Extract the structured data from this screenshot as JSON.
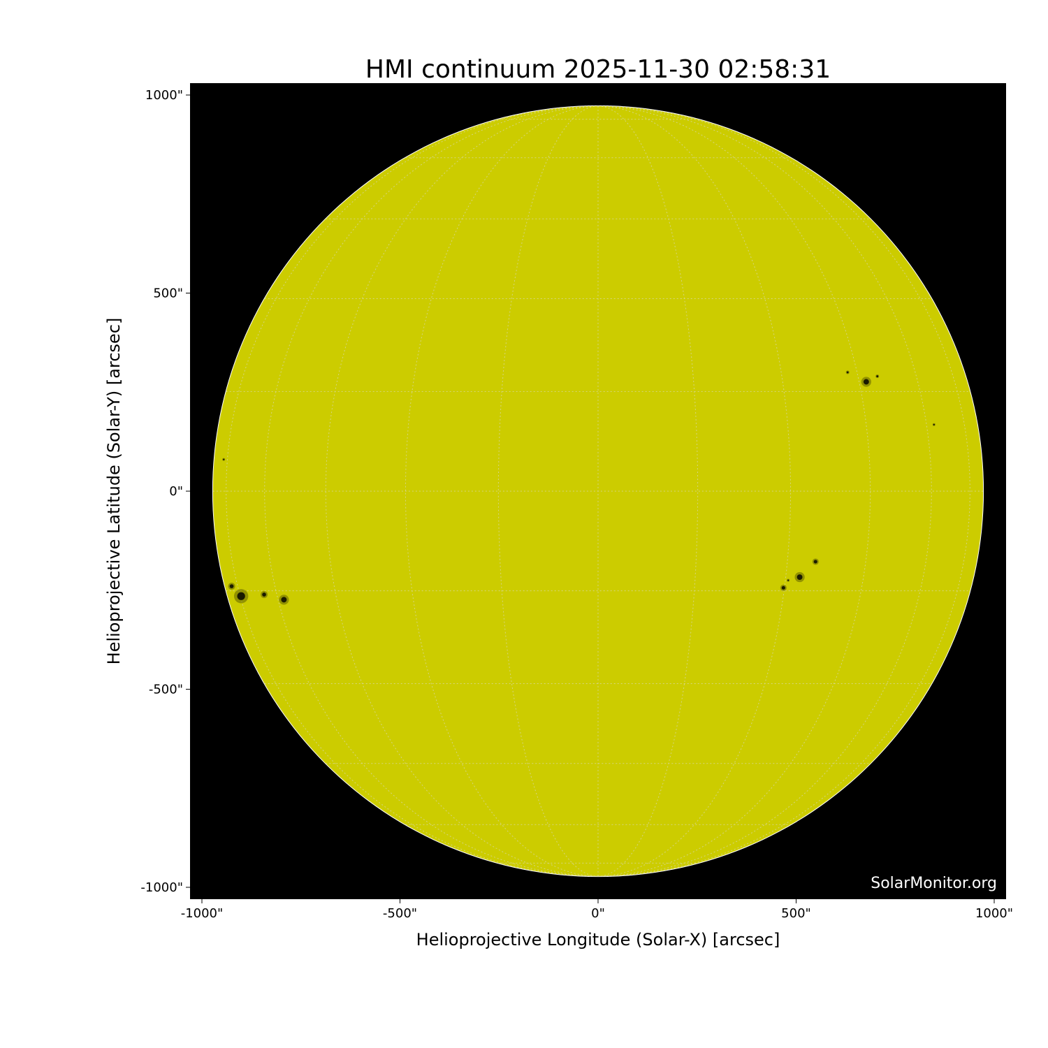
{
  "chart_data": {
    "type": "heatmap",
    "title": "HMI continuum 2025-11-30 02:58:31",
    "xlabel": "Helioprojective Longitude (Solar-X) [arcsec]",
    "ylabel": "Helioprojective Latitude (Solar-Y) [arcsec]",
    "xlim": [
      -1030,
      1030
    ],
    "ylim": [
      -1030,
      1030
    ],
    "xticks": [
      -1000,
      -500,
      0,
      500,
      1000
    ],
    "yticks": [
      -1000,
      -500,
      0,
      500,
      1000
    ],
    "xtick_labels": [
      "-1000\"",
      "-500\"",
      "0\"",
      "500\"",
      "1000\""
    ],
    "ytick_labels": [
      "-1000\"",
      "-500\"",
      "0\"",
      "500\"",
      "1000\""
    ],
    "solar_radius_arcsec": 972,
    "grid": true,
    "grid_spacing_deg": 15,
    "colors": {
      "disk": "#cccc00",
      "background": "#000000",
      "grid": "#d8d8a0",
      "sunspot": "#1a1a00",
      "penumbra": "#6b6b00"
    },
    "sunspots": [
      {
        "x": 677,
        "y": 276,
        "size": 14
      },
      {
        "x": 630,
        "y": 300,
        "size": 5
      },
      {
        "x": 705,
        "y": 290,
        "size": 5
      },
      {
        "x": 549,
        "y": -178,
        "size": 9
      },
      {
        "x": 509,
        "y": -217,
        "size": 14
      },
      {
        "x": 468,
        "y": -244,
        "size": 9
      },
      {
        "x": 480,
        "y": -225,
        "size": 4
      },
      {
        "x": 848,
        "y": 168,
        "size": 4
      },
      {
        "x": -793,
        "y": -274,
        "size": 14
      },
      {
        "x": -843,
        "y": -261,
        "size": 10
      },
      {
        "x": -901,
        "y": -265,
        "size": 20
      },
      {
        "x": -925,
        "y": -240,
        "size": 10
      },
      {
        "x": -945,
        "y": 80,
        "size": 4
      }
    ],
    "watermark": "SolarMonitor.org"
  }
}
